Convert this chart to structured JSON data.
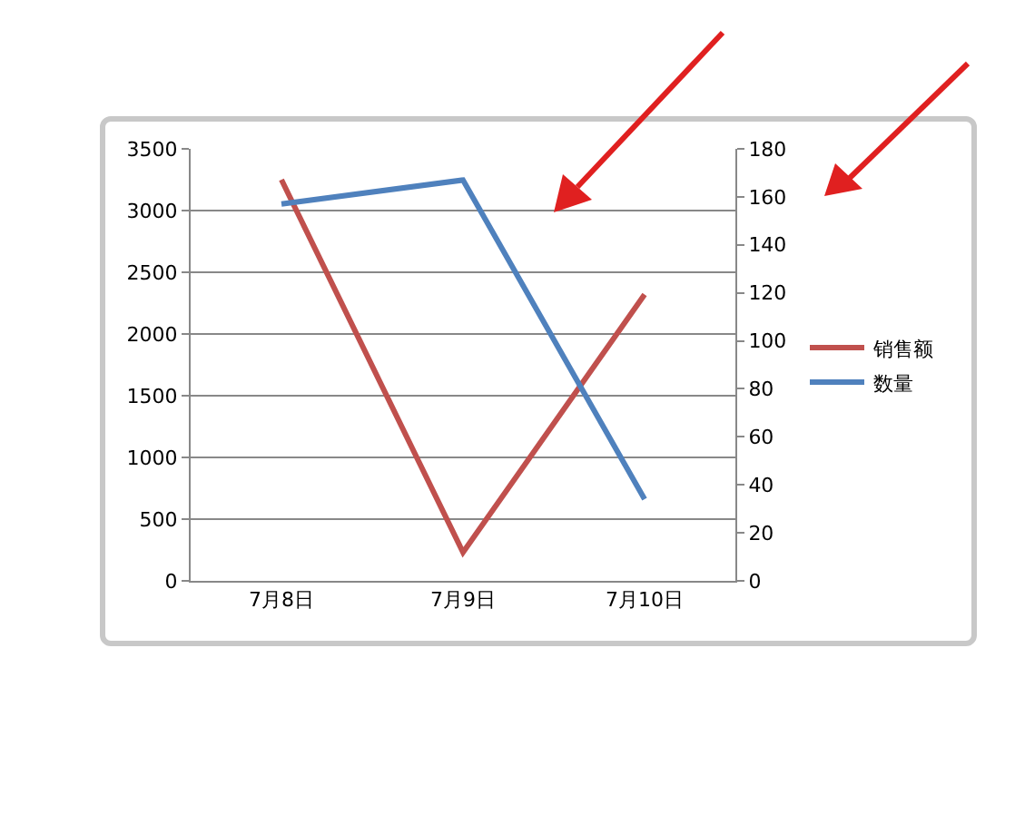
{
  "chart_data": {
    "type": "line",
    "categories": [
      "7月8日",
      "7月9日",
      "7月10日"
    ],
    "series": [
      {
        "name": "销售额",
        "color": "#c0504d",
        "values": [
          3250,
          230,
          2320
        ]
      },
      {
        "name": "数量",
        "color": "#4f81bd",
        "values": [
          157,
          167,
          34
        ],
        "axis": "y2"
      }
    ],
    "ylim": [
      0,
      3500
    ],
    "yticks": [
      0,
      500,
      1000,
      1500,
      2000,
      2500,
      3000,
      3500
    ],
    "y2lim": [
      0,
      180
    ],
    "y2ticks": [
      0,
      20,
      40,
      60,
      80,
      100,
      120,
      140,
      160,
      180
    ],
    "grid": "y",
    "legend": "right"
  }
}
